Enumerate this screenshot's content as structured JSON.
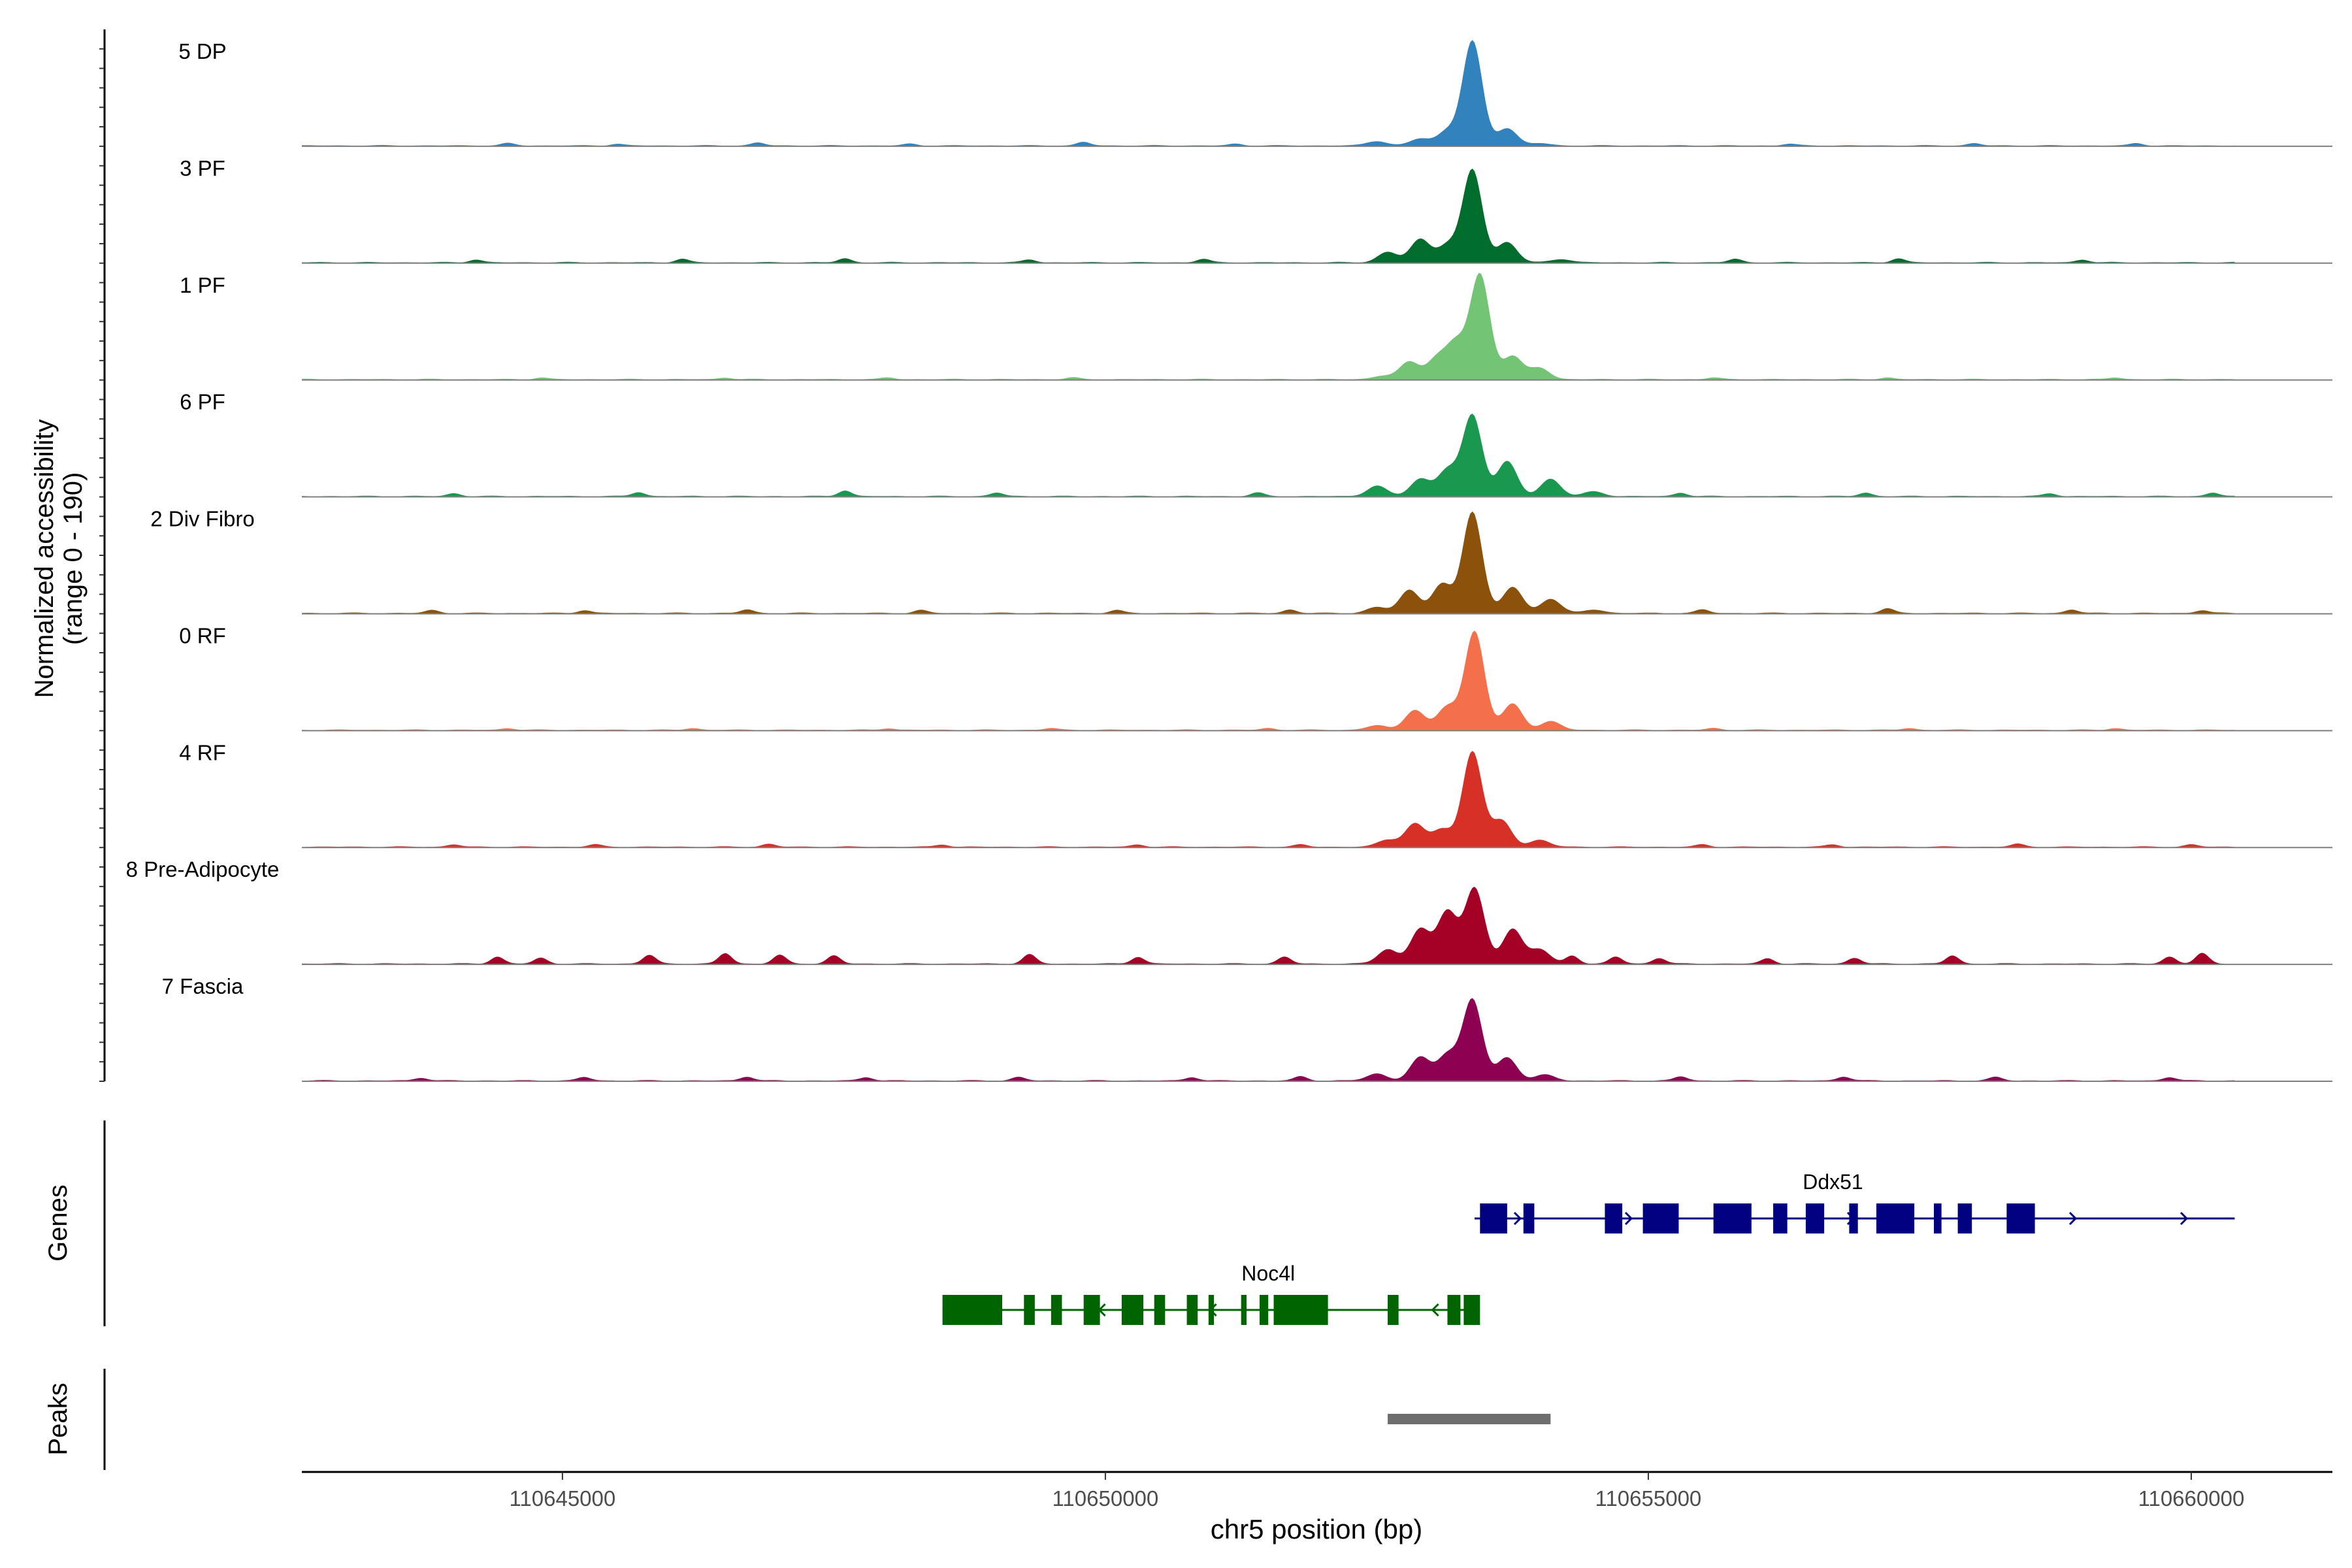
{
  "chart_data": {
    "type": "area",
    "title": "",
    "xlabel": "chr5 position (bp)",
    "ylabel": [
      "Normalized accessibility",
      "(range 0 - 190)"
    ],
    "ylim": [
      0,
      190
    ],
    "xlim": [
      110642600,
      110661300
    ],
    "x_ticks": [
      {
        "value": 110645000,
        "label": "110645000"
      },
      {
        "value": 110650000,
        "label": "110650000"
      },
      {
        "value": 110655000,
        "label": "110655000"
      },
      {
        "value": 110660000,
        "label": "110660000"
      }
    ],
    "track_range": [
      110642600,
      110660400
    ],
    "tracks": [
      {
        "name": "5 DP",
        "color": "#3182bd",
        "peaks": [
          [
            110652500,
            8
          ],
          [
            110652900,
            12
          ],
          [
            110653150,
            25
          ],
          [
            110653380,
            180
          ],
          [
            110653700,
            30
          ],
          [
            110654000,
            4
          ]
        ],
        "noise": [
          [
            110644500,
            4
          ],
          [
            110645500,
            3
          ],
          [
            110646800,
            5
          ],
          [
            110648200,
            3
          ],
          [
            110649800,
            6
          ],
          [
            110651200,
            3
          ],
          [
            110656300,
            3
          ],
          [
            110658000,
            4
          ],
          [
            110659500,
            4
          ]
        ]
      },
      {
        "name": "3 PF",
        "color": "#006d2c",
        "peaks": [
          [
            110652600,
            18
          ],
          [
            110652900,
            40
          ],
          [
            110653150,
            30
          ],
          [
            110653380,
            160
          ],
          [
            110653700,
            35
          ],
          [
            110654200,
            6
          ]
        ],
        "noise": [
          [
            110644200,
            5
          ],
          [
            110646100,
            6
          ],
          [
            110647600,
            7
          ],
          [
            110649300,
            5
          ],
          [
            110650900,
            6
          ],
          [
            110655800,
            6
          ],
          [
            110657300,
            7
          ],
          [
            110659000,
            5
          ]
        ]
      },
      {
        "name": "1 PF",
        "color": "#74c476",
        "peaks": [
          [
            110652550,
            6
          ],
          [
            110652800,
            30
          ],
          [
            110653050,
            35
          ],
          [
            110653230,
            60
          ],
          [
            110653450,
            180
          ],
          [
            110653750,
            40
          ],
          [
            110654000,
            20
          ]
        ],
        "noise": [
          [
            110644800,
            3
          ],
          [
            110646500,
            3
          ],
          [
            110648000,
            3
          ],
          [
            110649700,
            3
          ],
          [
            110655600,
            3
          ],
          [
            110657200,
            3
          ],
          [
            110659300,
            3
          ]
        ]
      },
      {
        "name": "6 PF",
        "color": "#1a9850",
        "peaks": [
          [
            110652500,
            18
          ],
          [
            110652900,
            30
          ],
          [
            110653150,
            45
          ],
          [
            110653380,
            140
          ],
          [
            110653700,
            60
          ],
          [
            110654100,
            30
          ],
          [
            110654500,
            8
          ]
        ],
        "noise": [
          [
            110644000,
            5
          ],
          [
            110645700,
            7
          ],
          [
            110647600,
            10
          ],
          [
            110649000,
            6
          ],
          [
            110651400,
            6
          ],
          [
            110655300,
            6
          ],
          [
            110657000,
            6
          ],
          [
            110658700,
            5
          ],
          [
            110660200,
            6
          ]
        ]
      },
      {
        "name": "2 Div Fibro",
        "color": "#8c510a",
        "peaks": [
          [
            110652500,
            10
          ],
          [
            110652800,
            40
          ],
          [
            110653100,
            50
          ],
          [
            110653380,
            175
          ],
          [
            110653750,
            45
          ],
          [
            110654100,
            25
          ],
          [
            110654500,
            6
          ]
        ],
        "noise": [
          [
            110643800,
            5
          ],
          [
            110645200,
            5
          ],
          [
            110646700,
            6
          ],
          [
            110648300,
            5
          ],
          [
            110650100,
            5
          ],
          [
            110651700,
            6
          ],
          [
            110655500,
            6
          ],
          [
            110657200,
            8
          ],
          [
            110658900,
            6
          ],
          [
            110660100,
            5
          ]
        ]
      },
      {
        "name": "0 RF",
        "color": "#f4704a",
        "peaks": [
          [
            110652500,
            8
          ],
          [
            110652850,
            35
          ],
          [
            110653150,
            40
          ],
          [
            110653400,
            170
          ],
          [
            110653750,
            45
          ],
          [
            110654100,
            15
          ]
        ],
        "noise": [
          [
            110644500,
            3
          ],
          [
            110646200,
            3
          ],
          [
            110648000,
            3
          ],
          [
            110649500,
            3
          ],
          [
            110651500,
            3
          ],
          [
            110655600,
            3
          ],
          [
            110657400,
            3
          ],
          [
            110659300,
            3
          ]
        ]
      },
      {
        "name": "4 RF",
        "color": "#d73027",
        "peaks": [
          [
            110652600,
            12
          ],
          [
            110652850,
            40
          ],
          [
            110653100,
            30
          ],
          [
            110653380,
            165
          ],
          [
            110653650,
            45
          ],
          [
            110654000,
            12
          ]
        ],
        "noise": [
          [
            110644000,
            4
          ],
          [
            110645300,
            4
          ],
          [
            110646900,
            5
          ],
          [
            110648500,
            4
          ],
          [
            110650300,
            4
          ],
          [
            110651800,
            4
          ],
          [
            110655500,
            4
          ],
          [
            110656700,
            4
          ],
          [
            110658400,
            5
          ],
          [
            110660000,
            4
          ]
        ]
      },
      {
        "name": "8 Pre-Adipocyte",
        "color": "#a50026",
        "peaks": [
          [
            110652600,
            25
          ],
          [
            110652900,
            60
          ],
          [
            110653150,
            90
          ],
          [
            110653400,
            130
          ],
          [
            110653750,
            60
          ],
          [
            110654000,
            25
          ]
        ],
        "noise": [
          [
            110644400,
            12
          ],
          [
            110644800,
            10
          ],
          [
            110645800,
            15
          ],
          [
            110646500,
            18
          ],
          [
            110647000,
            15
          ],
          [
            110647500,
            14
          ],
          [
            110649300,
            16
          ],
          [
            110650300,
            12
          ],
          [
            110651650,
            12
          ],
          [
            110654300,
            14
          ],
          [
            110654700,
            12
          ],
          [
            110655100,
            10
          ],
          [
            110656100,
            9
          ],
          [
            110656900,
            10
          ],
          [
            110657800,
            14
          ],
          [
            110659800,
            12
          ],
          [
            110660100,
            18
          ]
        ]
      },
      {
        "name": "7 Fascia",
        "color": "#8e0152",
        "peaks": [
          [
            110652500,
            12
          ],
          [
            110652900,
            40
          ],
          [
            110653150,
            45
          ],
          [
            110653380,
            140
          ],
          [
            110653700,
            40
          ],
          [
            110654050,
            10
          ]
        ],
        "noise": [
          [
            110643700,
            5
          ],
          [
            110645200,
            6
          ],
          [
            110646700,
            7
          ],
          [
            110647800,
            6
          ],
          [
            110649200,
            6
          ],
          [
            110650800,
            6
          ],
          [
            110651800,
            7
          ],
          [
            110655300,
            7
          ],
          [
            110656800,
            7
          ],
          [
            110658200,
            6
          ],
          [
            110659800,
            6
          ]
        ]
      }
    ],
    "genes_label": "Genes",
    "genes": [
      {
        "name": "Ddx51",
        "strand": "+",
        "color": "#000080",
        "start": 110653400,
        "end": 110660400,
        "exons": [
          [
            110653450,
            110653700
          ],
          [
            110653850,
            110653950
          ],
          [
            110654600,
            110654760
          ],
          [
            110654950,
            110655280
          ],
          [
            110655600,
            110655950
          ],
          [
            110656150,
            110656280
          ],
          [
            110656450,
            110656620
          ],
          [
            110656850,
            110656930
          ],
          [
            110657100,
            110657450
          ],
          [
            110657630,
            110657700
          ],
          [
            110657850,
            110657980
          ],
          [
            110658300,
            110658560
          ]
        ]
      },
      {
        "name": "Noc4l",
        "strand": "-",
        "color": "#006400",
        "start": 110648500,
        "end": 110653450,
        "exons": [
          [
            110648500,
            110649050
          ],
          [
            110649250,
            110649350
          ],
          [
            110649500,
            110649600
          ],
          [
            110649800,
            110649950
          ],
          [
            110650150,
            110650350
          ],
          [
            110650450,
            110650550
          ],
          [
            110650750,
            110650850
          ],
          [
            110650950,
            110651000
          ],
          [
            110651250,
            110651300
          ],
          [
            110651420,
            110651500
          ],
          [
            110651550,
            110652050
          ],
          [
            110652600,
            110652700
          ],
          [
            110653150,
            110653270
          ],
          [
            110653300,
            110653450
          ]
        ]
      }
    ],
    "peaks_label": "Peaks",
    "peak_regions": [
      [
        110652600,
        110654100
      ]
    ]
  }
}
